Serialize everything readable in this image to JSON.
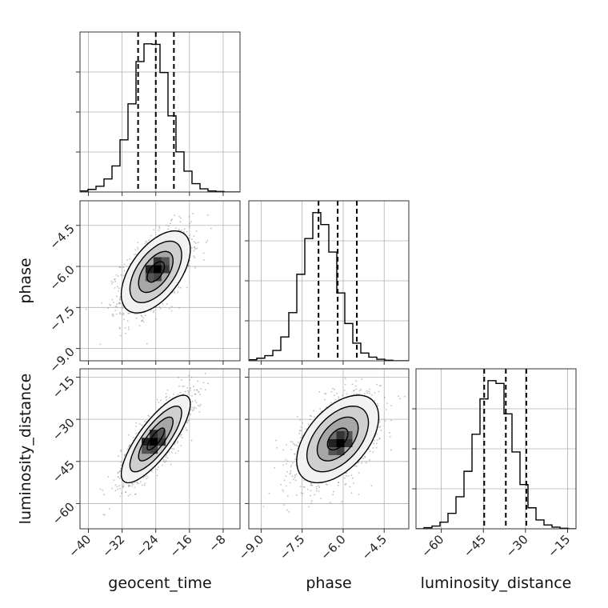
{
  "chart_data": {
    "type": "corner",
    "parameters": [
      "geocent_time",
      "phase",
      "luminosity_distance"
    ],
    "axis_labels": {
      "x": [
        "geocent_time",
        "phase",
        "luminosity_distance"
      ],
      "y": [
        "",
        "phase",
        "luminosity_distance"
      ]
    },
    "ranges": {
      "geocent_time": [
        -42,
        -4
      ],
      "phase": [
        -9.45,
        -3.6
      ],
      "luminosity_distance": [
        -69,
        -12
      ]
    },
    "ticks": {
      "geocent_time": [
        -40,
        -32,
        -24,
        -16,
        -8
      ],
      "phase": [
        -9.0,
        -7.5,
        -6.0,
        -4.5
      ],
      "luminosity_distance": [
        -60,
        -45,
        -30,
        -15
      ]
    },
    "tick_labels": {
      "geocent_time": [
        "−40",
        "−32",
        "−24",
        "−16",
        "−8"
      ],
      "phase": [
        "−9.0",
        "−7.5",
        "−6.0",
        "−4.5"
      ],
      "luminosity_distance": [
        "−60",
        "−45",
        "−30",
        "−15"
      ]
    },
    "quantiles": {
      "geocent_time": [
        -28.2,
        -24.0,
        -19.7
      ],
      "phase": [
        -6.9,
        -6.2,
        -5.5
      ],
      "luminosity_distance": [
        -44.7,
        -37.0,
        -29.7
      ]
    },
    "histograms": {
      "geocent_time": {
        "edges": [
          -42,
          -40.1,
          -38.2,
          -36.3,
          -34.4,
          -32.5,
          -30.6,
          -28.7,
          -26.8,
          -24.9,
          -23,
          -21.1,
          -19.2,
          -17.3,
          -15.4,
          -13.5,
          -11.6,
          -9.7,
          -7.8,
          -5.9,
          -4
        ],
        "counts": [
          2,
          5,
          11,
          25,
          50,
          100,
          169,
          250,
          284,
          283,
          229,
          146,
          77,
          40,
          16,
          6,
          2,
          1,
          0,
          0
        ]
      },
      "phase": {
        "edges": [
          -9.45,
          -9.1575,
          -8.865,
          -8.5725,
          -8.28,
          -7.9875,
          -7.695,
          -7.4025,
          -7.11,
          -6.8175,
          -6.525,
          -6.2325,
          -5.94,
          -5.6475,
          -5.355,
          -5.0625,
          -4.77,
          -4.4775,
          -4.185,
          -3.8925,
          -3.6
        ],
        "counts": [
          2,
          5,
          10,
          20,
          46,
          93,
          167,
          236,
          286,
          263,
          210,
          131,
          72,
          34,
          15,
          7,
          3,
          1,
          0,
          0
        ]
      },
      "luminosity_distance": {
        "edges": [
          -69,
          -66.15,
          -63.3,
          -60.45,
          -57.6,
          -54.75,
          -51.9,
          -49.05,
          -46.2,
          -43.35,
          -40.5,
          -37.65,
          -34.8,
          -31.95,
          -29.1,
          -26.25,
          -23.4,
          -20.55,
          -17.7,
          -14.85,
          -12
        ],
        "counts": [
          0,
          2,
          5,
          12,
          28,
          58,
          104,
          171,
          235,
          268,
          263,
          208,
          139,
          80,
          38,
          16,
          7,
          3,
          1,
          0
        ]
      }
    },
    "joint_2d": [
      {
        "x": "geocent_time",
        "y": "phase",
        "mean": [
          -24,
          -6.2
        ],
        "std": [
          4.1,
          0.75
        ],
        "corr": 0.55,
        "peak": [
          -23.6,
          -6.1
        ]
      },
      {
        "x": "geocent_time",
        "y": "luminosity_distance",
        "mean": [
          -24,
          -37
        ],
        "std": [
          4.1,
          7.8
        ],
        "corr": 0.8,
        "peak": [
          -24.5,
          -38.0
        ]
      },
      {
        "x": "phase",
        "y": "luminosity_distance",
        "mean": [
          -6.2,
          -37
        ],
        "std": [
          0.75,
          7.8
        ],
        "corr": 0.5,
        "peak": [
          -6.1,
          -38.5
        ]
      }
    ],
    "contour_levels_sigma": [
      0.5,
      1.0,
      1.5,
      2.0
    ],
    "grid": true
  }
}
